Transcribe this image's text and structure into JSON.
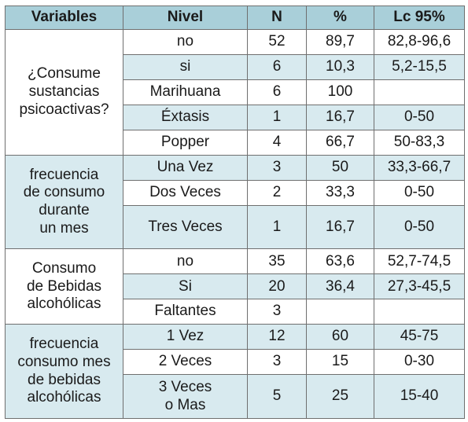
{
  "headers": {
    "variables": "Variables",
    "nivel": "Nivel",
    "n": "N",
    "pct": "%",
    "lc": "Lc 95%"
  },
  "groups": [
    {
      "label_lines": [
        "¿Consume",
        "sustancias",
        "psicoactivas?"
      ],
      "rows": [
        {
          "nivel": "no",
          "n": "52",
          "pct": "89,7",
          "lc": "82,8-96,6"
        },
        {
          "nivel": "si",
          "n": "6",
          "pct": "10,3",
          "lc": "5,2-15,5"
        },
        {
          "nivel": "Marihuana",
          "n": "6",
          "pct": "100",
          "lc": ""
        },
        {
          "nivel": "Éxtasis",
          "n": "1",
          "pct": "16,7",
          "lc": "0-50"
        },
        {
          "nivel": "Popper",
          "n": "4",
          "pct": "66,7",
          "lc": "50-83,3"
        }
      ]
    },
    {
      "label_lines": [
        "frecuencia",
        "de consumo",
        "durante",
        "un mes"
      ],
      "rows": [
        {
          "nivel": "Una Vez",
          "n": "3",
          "pct": "50",
          "lc": "33,3-66,7"
        },
        {
          "nivel": "Dos Veces",
          "n": "2",
          "pct": "33,3",
          "lc": "0-50"
        },
        {
          "nivel": "Tres Veces",
          "n": "1",
          "pct": "16,7",
          "lc": "0-50"
        }
      ]
    },
    {
      "label_lines": [
        "Consumo",
        "de Bebidas",
        "alcohólicas"
      ],
      "rows": [
        {
          "nivel": "no",
          "n": "35",
          "pct": "63,6",
          "lc": "52,7-74,5"
        },
        {
          "nivel": "Si",
          "n": "20",
          "pct": "36,4",
          "lc": "27,3-45,5"
        },
        {
          "nivel": "Faltantes",
          "n": "3",
          "pct": "",
          "lc": ""
        }
      ]
    },
    {
      "label_lines": [
        "frecuencia",
        "consumo mes",
        "de bebidas",
        "alcohólicas"
      ],
      "rows": [
        {
          "nivel": "1 Vez",
          "n": "12",
          "pct": "60",
          "lc": "45-75"
        },
        {
          "nivel": "2 Veces",
          "n": "3",
          "pct": "15",
          "lc": "0-30"
        },
        {
          "nivel_lines": [
            "3 Veces",
            "o Mas"
          ],
          "n": "5",
          "pct": "25",
          "lc": "15-40"
        }
      ]
    }
  ]
}
